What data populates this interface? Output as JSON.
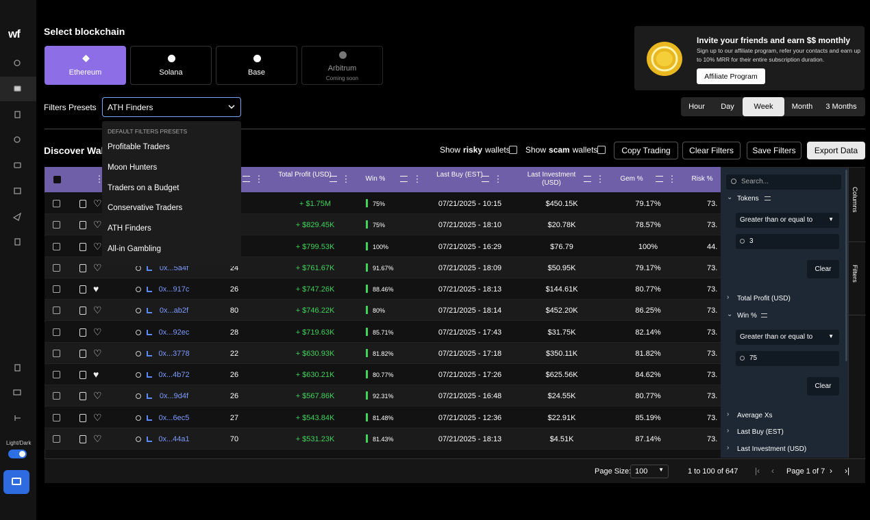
{
  "sidebar": {
    "logo": "wf",
    "theme_label": "Light/Dark"
  },
  "header": {
    "title": "Select blockchain"
  },
  "chains": [
    {
      "name": "Ethereum",
      "active": true
    },
    {
      "name": "Solana",
      "active": false
    },
    {
      "name": "Base",
      "active": false
    },
    {
      "name": "Arbitrum",
      "note": "Coming soon",
      "active": false
    }
  ],
  "affiliate": {
    "title": "Invite your friends and earn $$ monthly",
    "text": "Sign up to our affiliate program, refer your contacts and earn up to 10% MRR for their entire subscription duration.",
    "button": "Affiliate Program"
  },
  "presets": {
    "label": "Filters Presets",
    "selected": "ATH Finders",
    "menu_title": "DEFAULT FILTERS PRESETS",
    "options": [
      "Profitable Traders",
      "Moon Hunters",
      "Traders on a Budget",
      "Conservative Traders",
      "ATH Finders",
      "All-in Gambling"
    ]
  },
  "periods": {
    "options": [
      "Hour",
      "Day",
      "Week",
      "Month",
      "3 Months"
    ],
    "active": "Week"
  },
  "toolbar": {
    "title": "Discover Wallets",
    "risky": {
      "pre": "Show",
      "bold": "risky",
      "post": "wallets"
    },
    "scam": {
      "pre": "Show",
      "bold": "scam",
      "post": "wallets"
    },
    "buttons": [
      "Copy Trading",
      "Clear Filters",
      "Save Filters",
      "Export Data"
    ]
  },
  "table": {
    "columns": [
      "Total Profit (USD)",
      "Win %",
      "Last Buy (EST)",
      "Last Investment (USD)",
      "Gem %",
      "Risk %"
    ],
    "rows": [
      {
        "wallet": null,
        "trades": null,
        "profit": "+ $1.75M",
        "win": "75%",
        "last_buy": "07/21/2025 - 10:15",
        "last_investment": "$450.15K",
        "gem": "79.17%",
        "risk": "73.",
        "favorite": false
      },
      {
        "wallet": null,
        "trades": null,
        "profit": "+ $829.45K",
        "win": "75%",
        "last_buy": "07/21/2025 - 18:10",
        "last_investment": "$20.78K",
        "gem": "78.57%",
        "risk": "73.",
        "favorite": false
      },
      {
        "wallet": null,
        "trades": null,
        "profit": "+ $799.53K",
        "win": "100%",
        "last_buy": "07/21/2025 - 16:29",
        "last_investment": "$76.79",
        "gem": "100%",
        "risk": "44.",
        "favorite": false
      },
      {
        "wallet": "0x...5a4f",
        "trades": "24",
        "profit": "+ $761.67K",
        "win": "91.67%",
        "last_buy": "07/21/2025 - 18:09",
        "last_investment": "$50.95K",
        "gem": "79.17%",
        "risk": "73.",
        "favorite": false
      },
      {
        "wallet": "0x...917c",
        "trades": "26",
        "profit": "+ $747.26K",
        "win": "88.46%",
        "last_buy": "07/21/2025 - 18:13",
        "last_investment": "$144.61K",
        "gem": "80.77%",
        "risk": "73.",
        "favorite": true
      },
      {
        "wallet": "0x...ab2f",
        "trades": "80",
        "profit": "+ $746.22K",
        "win": "80%",
        "last_buy": "07/21/2025 - 18:14",
        "last_investment": "$452.20K",
        "gem": "86.25%",
        "risk": "73.",
        "favorite": false
      },
      {
        "wallet": "0x...92ec",
        "trades": "28",
        "profit": "+ $719.63K",
        "win": "85.71%",
        "last_buy": "07/21/2025 - 17:43",
        "last_investment": "$31.75K",
        "gem": "82.14%",
        "risk": "73.",
        "favorite": false
      },
      {
        "wallet": "0x...3778",
        "trades": "22",
        "profit": "+ $630.93K",
        "win": "81.82%",
        "last_buy": "07/21/2025 - 17:18",
        "last_investment": "$350.11K",
        "gem": "81.82%",
        "risk": "73.",
        "favorite": false
      },
      {
        "wallet": "0x...4b72",
        "trades": "26",
        "profit": "+ $630.21K",
        "win": "80.77%",
        "last_buy": "07/21/2025 - 17:26",
        "last_investment": "$625.56K",
        "gem": "84.62%",
        "risk": "73.",
        "favorite": true
      },
      {
        "wallet": "0x...9d4f",
        "trades": "26",
        "profit": "+ $567.86K",
        "win": "92.31%",
        "last_buy": "07/21/2025 - 16:48",
        "last_investment": "$24.55K",
        "gem": "80.77%",
        "risk": "73.",
        "favorite": false
      },
      {
        "wallet": "0x...6ec5",
        "trades": "27",
        "profit": "+ $543.84K",
        "win": "81.48%",
        "last_buy": "07/21/2025 - 12:36",
        "last_investment": "$22.91K",
        "gem": "85.19%",
        "risk": "73.",
        "favorite": false
      },
      {
        "wallet": "0x...44a1",
        "trades": "70",
        "profit": "+ $531.23K",
        "win": "81.43%",
        "last_buy": "07/21/2025 - 18:13",
        "last_investment": "$4.51K",
        "gem": "87.14%",
        "risk": "73.",
        "favorite": false
      }
    ]
  },
  "footer": {
    "page_size_label": "Page Size:",
    "page_size": "100",
    "range": "1 to 100 of 647",
    "page": "Page 1 of 7"
  },
  "filter_panel": {
    "search": "Search...",
    "tabs": [
      "Columns",
      "Filters"
    ],
    "groups": [
      {
        "name": "Tokens",
        "expanded": true,
        "condition": "Greater than or equal to",
        "value": "3",
        "clear": "Clear"
      },
      {
        "name": "Total Profit (USD)",
        "expanded": false
      },
      {
        "name": "Win %",
        "expanded": true,
        "condition": "Greater than or equal to",
        "value": "75",
        "clear": "Clear"
      },
      {
        "name": "Average Xs",
        "expanded": false
      },
      {
        "name": "Last Buy (EST)",
        "expanded": false
      },
      {
        "name": "Last Investment (USD)",
        "expanded": false
      }
    ]
  }
}
